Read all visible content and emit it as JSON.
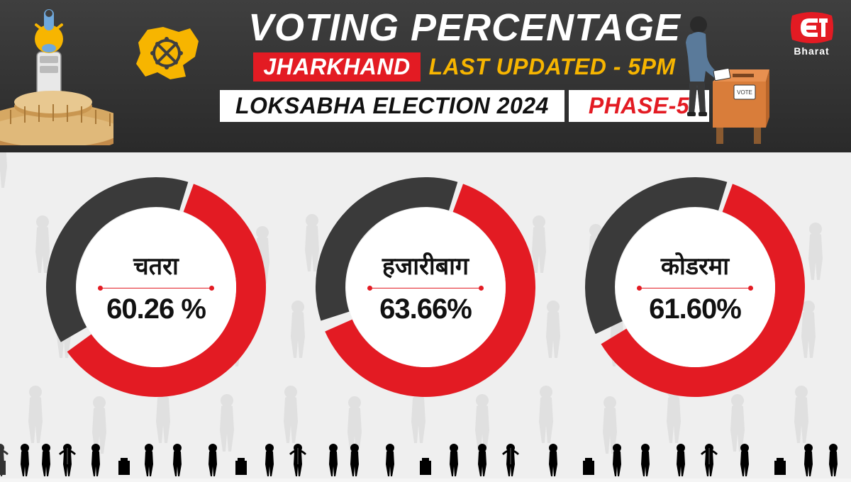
{
  "colors": {
    "header_bg_top": "#3f3f3f",
    "header_bg_bottom": "#2a2a2a",
    "body_bg": "#efefef",
    "accent_red": "#e31b23",
    "accent_yellow": "#f7b500",
    "ring_dark": "#3a3a3a",
    "ring_red": "#e31b23",
    "white": "#ffffff",
    "text_dark": "#111111",
    "silhouette": "#333333"
  },
  "logo": {
    "brand_line": "Bharat"
  },
  "header": {
    "title": "VOTING PERCENTAGE",
    "state": "JHARKHAND",
    "updated": "LAST UPDATED - 5PM",
    "election": "LOKSABHA ELECTION 2024",
    "phase": "PHASE-5",
    "title_fontsize": 54,
    "state_fontsize": 32,
    "updated_fontsize": 32,
    "info_fontsize": 32
  },
  "donut": {
    "type": "donut-progress",
    "ring_thickness": 42,
    "outer_radius": 155,
    "start_angle_deg": 20,
    "gap_deg": 6,
    "bg_center": "#ffffff"
  },
  "constituencies": [
    {
      "name": "चतरा",
      "value": 60.26,
      "display": "60.26 %"
    },
    {
      "name": "हजारीबाग",
      "value": 63.66,
      "display": "63.66%"
    },
    {
      "name": "कोडरमा",
      "value": 61.6,
      "display": "61.60%"
    }
  ]
}
